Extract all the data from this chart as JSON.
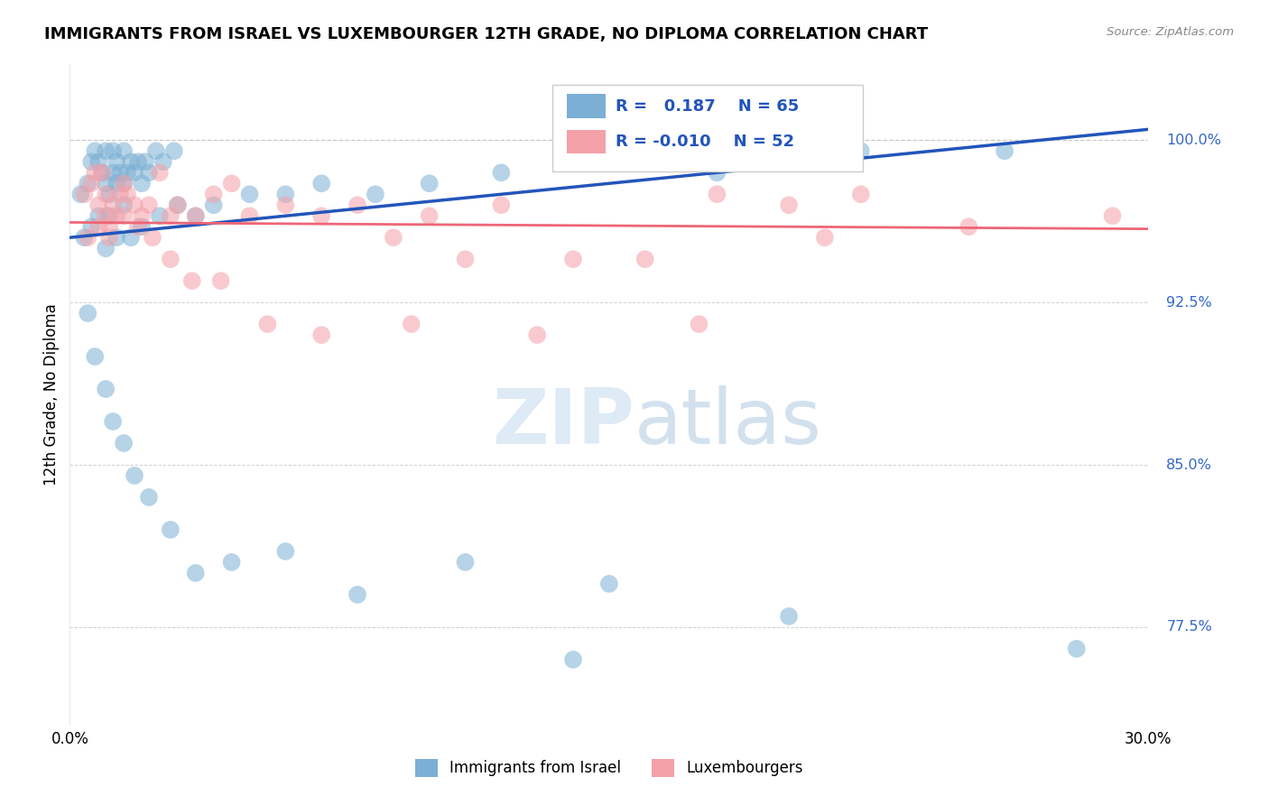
{
  "title": "IMMIGRANTS FROM ISRAEL VS LUXEMBOURGER 12TH GRADE, NO DIPLOMA CORRELATION CHART",
  "source": "Source: ZipAtlas.com",
  "legend_label_blue": "Immigrants from Israel",
  "legend_label_pink": "Luxembourgers",
  "ylabel_label": "12th Grade, No Diploma",
  "blue_R": 0.187,
  "blue_N": 65,
  "pink_R": -0.01,
  "pink_N": 52,
  "xmin": 0.0,
  "xmax": 30.0,
  "ymin": 73.0,
  "ymax": 103.5,
  "ytick_vals": [
    77.5,
    85.0,
    92.5,
    100.0
  ],
  "ytick_labels": [
    "77.5%",
    "85.0%",
    "92.5%",
    "100.0%"
  ],
  "xtick_vals": [
    0.0,
    30.0
  ],
  "xtick_labels": [
    "0.0%",
    "30.0%"
  ],
  "blue_color": "#7BAFD4",
  "pink_color": "#F4A0A8",
  "blue_line_color": "#2255BB",
  "pink_line_color": "#EE6677",
  "dashed_line_color": "#BBBBBB",
  "grid_color": "#CCCCCC",
  "watermark_color": "#DDEEFF",
  "blue_x": [
    0.3,
    0.5,
    0.6,
    0.7,
    0.8,
    0.9,
    1.0,
    1.0,
    1.1,
    1.2,
    1.2,
    1.3,
    1.3,
    1.4,
    1.5,
    1.5,
    1.6,
    1.7,
    1.8,
    1.9,
    2.0,
    2.1,
    2.2,
    2.4,
    2.6,
    2.9,
    0.4,
    0.6,
    0.8,
    1.0,
    1.1,
    1.3,
    1.5,
    1.7,
    2.0,
    2.5,
    3.0,
    3.5,
    4.0,
    5.0,
    6.0,
    7.0,
    8.5,
    10.0,
    12.0,
    15.0,
    18.0,
    22.0,
    26.0,
    0.5,
    0.7,
    1.0,
    1.2,
    1.5,
    1.8,
    2.2,
    2.8,
    3.5,
    4.5,
    6.0,
    8.0,
    11.0,
    14.0,
    20.0,
    28.0
  ],
  "blue_y": [
    97.5,
    98.0,
    99.0,
    99.5,
    99.0,
    98.5,
    98.0,
    99.5,
    97.5,
    98.5,
    99.5,
    98.0,
    99.0,
    98.5,
    98.0,
    99.5,
    98.5,
    99.0,
    98.5,
    99.0,
    98.0,
    99.0,
    98.5,
    99.5,
    99.0,
    99.5,
    95.5,
    96.0,
    96.5,
    95.0,
    96.5,
    95.5,
    97.0,
    95.5,
    96.0,
    96.5,
    97.0,
    96.5,
    97.0,
    97.5,
    97.5,
    98.0,
    97.5,
    98.0,
    98.5,
    79.5,
    98.5,
    99.5,
    99.5,
    92.0,
    90.0,
    88.5,
    87.0,
    86.0,
    84.5,
    83.5,
    82.0,
    80.0,
    80.5,
    81.0,
    79.0,
    80.5,
    76.0,
    78.0,
    76.5
  ],
  "pink_x": [
    0.4,
    0.6,
    0.7,
    0.8,
    0.9,
    1.0,
    1.0,
    1.1,
    1.2,
    1.3,
    1.4,
    1.5,
    1.6,
    1.8,
    2.0,
    2.2,
    2.5,
    2.8,
    3.0,
    3.5,
    4.0,
    4.5,
    5.0,
    6.0,
    7.0,
    8.0,
    9.0,
    10.0,
    11.0,
    12.0,
    14.0,
    16.0,
    18.0,
    20.0,
    22.0,
    0.5,
    0.8,
    1.1,
    1.5,
    1.9,
    2.3,
    2.8,
    3.4,
    4.2,
    5.5,
    7.0,
    9.5,
    13.0,
    17.5,
    21.0,
    25.0,
    29.0
  ],
  "pink_y": [
    97.5,
    98.0,
    98.5,
    97.0,
    98.5,
    97.5,
    96.5,
    96.0,
    97.0,
    96.5,
    97.5,
    98.0,
    97.5,
    97.0,
    96.5,
    97.0,
    98.5,
    96.5,
    97.0,
    96.5,
    97.5,
    98.0,
    96.5,
    97.0,
    96.5,
    97.0,
    95.5,
    96.5,
    94.5,
    97.0,
    94.5,
    94.5,
    97.5,
    97.0,
    97.5,
    95.5,
    96.0,
    95.5,
    96.5,
    96.0,
    95.5,
    94.5,
    93.5,
    93.5,
    91.5,
    91.0,
    91.5,
    91.0,
    91.5,
    95.5,
    96.0,
    96.5
  ]
}
